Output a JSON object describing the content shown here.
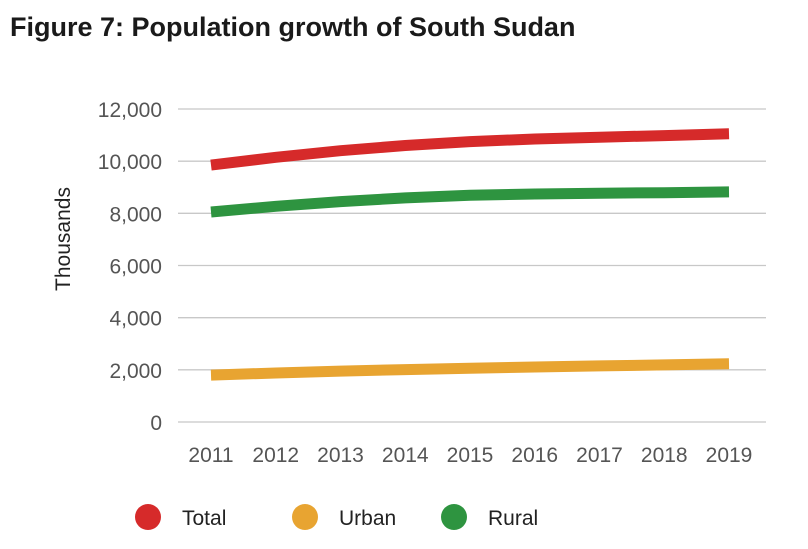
{
  "title": "Figure 7: Population growth of South Sudan",
  "chart_data": {
    "type": "line",
    "ylabel": "Thousands",
    "xlabel": "",
    "x": [
      "2011",
      "2012",
      "2013",
      "2014",
      "2015",
      "2016",
      "2017",
      "2018",
      "2019"
    ],
    "ylim": [
      0,
      12000
    ],
    "yticks": [
      "0",
      "2,000",
      "4,000",
      "6,000",
      "8,000",
      "10,000",
      "12,000"
    ],
    "grid": true,
    "legend_position": "bottom",
    "series": [
      {
        "name": "Total",
        "color": "#d62a2a",
        "values": [
          9850,
          10150,
          10400,
          10600,
          10750,
          10850,
          10920,
          10980,
          11050
        ]
      },
      {
        "name": "Urban",
        "color": "#e8a431",
        "values": [
          1800,
          1880,
          1950,
          2010,
          2060,
          2110,
          2150,
          2190,
          2230
        ]
      },
      {
        "name": "Rural",
        "color": "#2e9440",
        "values": [
          8050,
          8270,
          8450,
          8590,
          8690,
          8740,
          8770,
          8790,
          8820
        ]
      }
    ]
  }
}
